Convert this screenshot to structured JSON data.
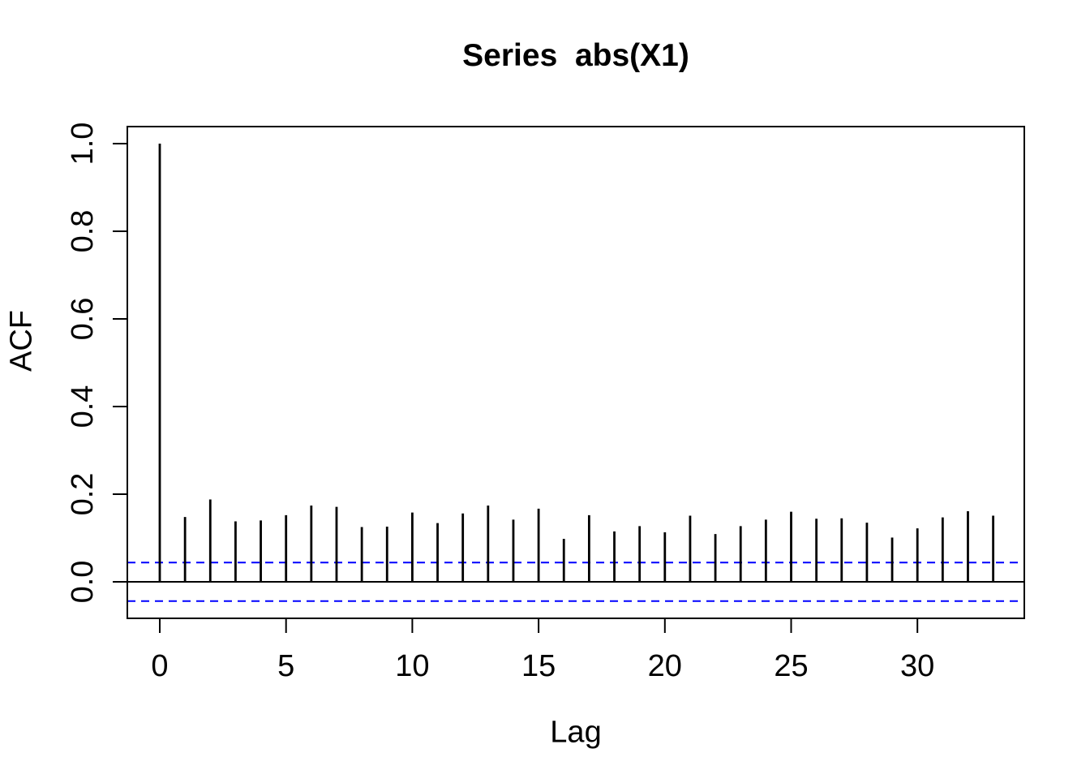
{
  "chart_data": {
    "type": "bar",
    "subtype": "acf-stem-plot",
    "title": "Series  abs(X1)",
    "xlabel": "Lag",
    "ylabel": "ACF",
    "x": [
      0,
      1,
      2,
      3,
      4,
      5,
      6,
      7,
      8,
      9,
      10,
      11,
      12,
      13,
      14,
      15,
      16,
      17,
      18,
      19,
      20,
      21,
      22,
      23,
      24,
      25,
      26,
      27,
      28,
      29,
      30,
      31,
      32,
      33
    ],
    "values": [
      1.0,
      0.148,
      0.188,
      0.138,
      0.14,
      0.152,
      0.174,
      0.171,
      0.125,
      0.126,
      0.158,
      0.134,
      0.156,
      0.174,
      0.142,
      0.167,
      0.098,
      0.152,
      0.115,
      0.127,
      0.113,
      0.151,
      0.109,
      0.127,
      0.142,
      0.16,
      0.144,
      0.145,
      0.135,
      0.101,
      0.122,
      0.147,
      0.161,
      0.151
    ],
    "zero_line": 0,
    "confidence_bounds": [
      -0.044,
      0.044
    ],
    "confidence_style": "dashed",
    "xticks": [
      {
        "v": 0,
        "label": "0"
      },
      {
        "v": 5,
        "label": "5"
      },
      {
        "v": 10,
        "label": "10"
      },
      {
        "v": 15,
        "label": "15"
      },
      {
        "v": 20,
        "label": "20"
      },
      {
        "v": 25,
        "label": "25"
      },
      {
        "v": 30,
        "label": "30"
      }
    ],
    "yticks": [
      {
        "v": 0.0,
        "label": "0.0"
      },
      {
        "v": 0.2,
        "label": "0.2"
      },
      {
        "v": 0.4,
        "label": "0.4"
      },
      {
        "v": 0.6,
        "label": "0.6"
      },
      {
        "v": 0.8,
        "label": "0.8"
      },
      {
        "v": 1.0,
        "label": "1.0"
      }
    ],
    "xlim": [
      -1.3,
      34.2
    ],
    "ylim": [
      -0.083,
      1.039
    ],
    "grid": false,
    "legend": "none",
    "colors": {
      "series": "#000000",
      "confidence": "#0000FF",
      "frame": "#000000",
      "background": "#FFFFFF"
    }
  }
}
